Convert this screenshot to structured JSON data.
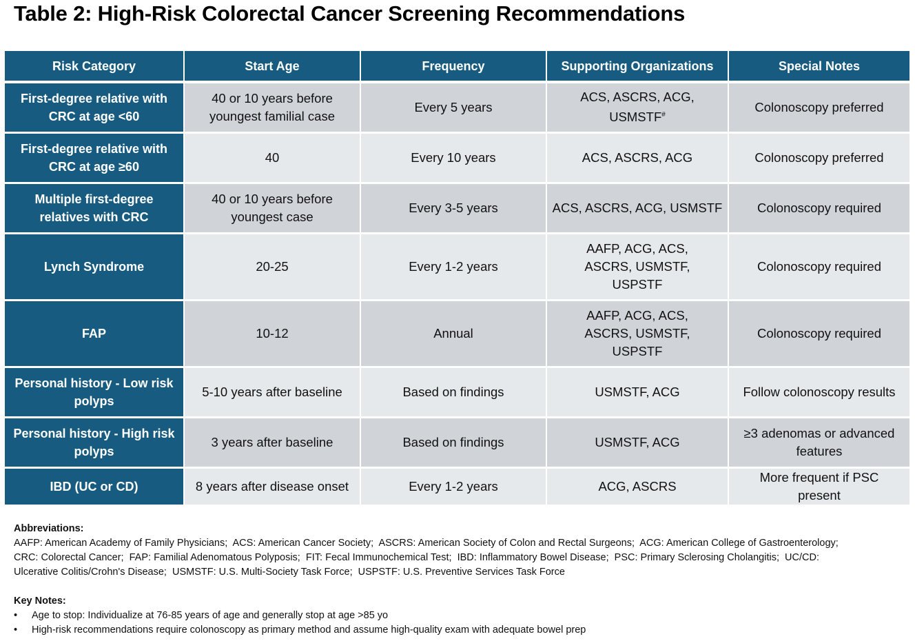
{
  "title": "Table 2: High-Risk Colorectal Cancer Screening Recommendations",
  "headers": [
    "Risk Category",
    "Start Age",
    "Frequency",
    "Supporting Organizations",
    "Special Notes"
  ],
  "rows": [
    {
      "category": "First-degree relative with CRC at age <60",
      "start": "40 or 10 years before youngest familial case",
      "frequency": "Every 5 years",
      "orgs": "ACS, ASCRS, ACG, USMSTF",
      "orgs_sup": "#",
      "notes": "Colonoscopy preferred"
    },
    {
      "category": "First-degree relative with CRC at age ≥60",
      "start": "40",
      "frequency": "Every 10 years",
      "orgs": "ACS, ASCRS, ACG",
      "orgs_sup": "",
      "notes": "Colonoscopy preferred"
    },
    {
      "category": "Multiple first-degree relatives with CRC",
      "start": "40 or 10 years before youngest case",
      "frequency": "Every 3-5 years",
      "orgs": "ACS, ASCRS, ACG, USMSTF",
      "orgs_sup": "",
      "notes": "Colonoscopy required"
    },
    {
      "category": "Lynch Syndrome",
      "start": "20-25",
      "frequency": "Every 1-2 years",
      "orgs": "AAFP, ACG, ACS, ASCRS, USMSTF, USPSTF",
      "orgs_sup": "",
      "notes": "Colonoscopy required"
    },
    {
      "category": "FAP",
      "start": "10-12",
      "frequency": "Annual",
      "orgs": "AAFP, ACG, ACS, ASCRS, USMSTF, USPSTF",
      "orgs_sup": "",
      "notes": "Colonoscopy required"
    },
    {
      "category": "Personal history - Low risk polyps",
      "start": "5-10 years after baseline",
      "frequency": "Based on findings",
      "orgs": "USMSTF, ACG",
      "orgs_sup": "",
      "notes": "Follow colonoscopy results"
    },
    {
      "category": "Personal history - High risk polyps",
      "start": "3 years after baseline",
      "frequency": "Based on findings",
      "orgs": "USMSTF, ACG",
      "orgs_sup": "",
      "notes": "≥3 adenomas or advanced features"
    },
    {
      "category": "IBD (UC or CD)",
      "start": "8 years after disease onset",
      "frequency": "Every 1-2 years",
      "orgs": "ACG, ASCRS",
      "orgs_sup": "",
      "notes": "More frequent if PSC present"
    }
  ],
  "abbreviations": {
    "heading": "Abbreviations:",
    "line1": "AAFP: American Academy of Family Physicians;  ACS: American Cancer Society;  ASCRS: American Society of Colon and Rectal Surgeons;  ACG: American College of Gastroenterology;",
    "line2": "CRC: Colorectal Cancer;  FAP: Familial Adenomatous Polyposis;  FIT: Fecal Immunochemical Test;  IBD: Inflammatory Bowel Disease;  PSC: Primary Sclerosing Cholangitis;  UC/CD:",
    "line3": "Ulcerative Colitis/Crohn's Disease;  USMSTF: U.S. Multi-Society Task Force;  USPSTF: U.S. Preventive Services Task Force"
  },
  "key_notes": {
    "heading": "Key Notes:",
    "bullet": "•",
    "items": [
      "Age to stop: Individualize at 76-85 years of age and generally stop at age >85 yo",
      "High-risk recommendations require colonoscopy as primary method and assume high-quality exam with adequate bowel prep"
    ]
  },
  "colors": {
    "header_bg": "#175c80",
    "row_odd": "#d0d4d9",
    "row_even": "#e6e9ec"
  }
}
